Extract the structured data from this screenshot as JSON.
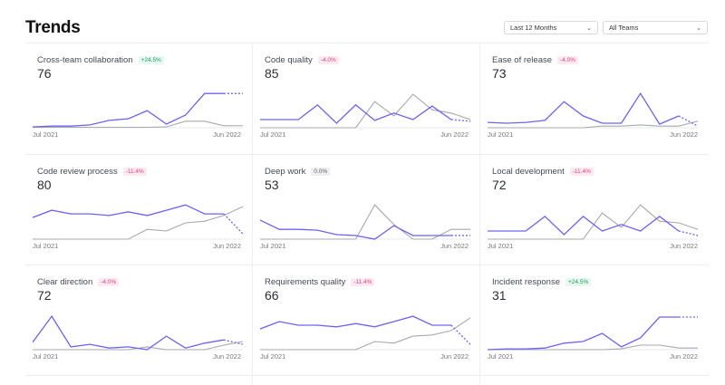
{
  "header": {
    "title": "Trends"
  },
  "filters": {
    "period": "Last 12 Months",
    "team": "All Teams"
  },
  "colors": {
    "primary": "#6c63f0",
    "comparison": "#a6a9b0",
    "positive": "#1f9d5c",
    "negative": "#e2407f"
  },
  "chart_data": [
    {
      "type": "line",
      "title": "Cross-team collaboration",
      "value": "76",
      "change": "+24.5%",
      "trend": "pos",
      "x_start": "Jul 2021",
      "x_end": "Jun 2022",
      "series": [
        {
          "values": [
            2,
            4,
            4,
            7,
            18,
            22,
            42,
            9,
            31,
            84,
            84,
            84
          ]
        },
        {
          "values": [
            1,
            1,
            1,
            1,
            1,
            1,
            1,
            2,
            16,
            16,
            5,
            5
          ]
        }
      ]
    },
    {
      "type": "line",
      "title": "Code quality",
      "value": "85",
      "change": "-4.0%",
      "trend": "neg",
      "x_start": "Jul 2021",
      "x_end": "Jun 2022",
      "series": [
        {
          "values": [
            20,
            20,
            20,
            56,
            11,
            56,
            18,
            36,
            20,
            53,
            20,
            16
          ]
        },
        {
          "values": [
            0,
            0,
            0,
            0,
            0,
            0,
            64,
            29,
            82,
            44,
            36,
            20
          ]
        }
      ]
    },
    {
      "type": "line",
      "title": "Ease of release",
      "value": "73",
      "change": "-4.0%",
      "trend": "neg",
      "x_start": "Jul 2021",
      "x_end": "Jun 2022",
      "series": [
        {
          "values": [
            13,
            11,
            13,
            18,
            64,
            29,
            11,
            11,
            84,
            9,
            29,
            4
          ]
        },
        {
          "values": [
            0,
            0,
            0,
            0,
            0,
            0,
            4,
            4,
            7,
            4,
            4,
            16
          ]
        }
      ]
    },
    {
      "type": "line",
      "title": "Code review process",
      "value": "80",
      "change": "-11.4%",
      "trend": "neg",
      "x_start": "Jul 2021",
      "x_end": "Jun 2022",
      "series": [
        {
          "values": [
            53,
            71,
            62,
            62,
            58,
            67,
            58,
            71,
            84,
            62,
            62,
            13
          ]
        },
        {
          "values": [
            0,
            0,
            0,
            0,
            0,
            0,
            24,
            20,
            40,
            44,
            58,
            80
          ]
        }
      ]
    },
    {
      "type": "line",
      "title": "Deep work",
      "value": "53",
      "change": "0.0%",
      "trend": "neu",
      "x_start": "Jul 2021",
      "x_end": "Jun 2022",
      "series": [
        {
          "values": [
            47,
            24,
            24,
            22,
            11,
            9,
            0,
            33,
            9,
            9,
            9,
            9
          ]
        },
        {
          "values": [
            0,
            0,
            0,
            0,
            0,
            0,
            84,
            36,
            0,
            0,
            24,
            24
          ]
        }
      ]
    },
    {
      "type": "line",
      "title": "Local development",
      "value": "72",
      "change": "-11.4%",
      "trend": "neg",
      "x_start": "Jul 2021",
      "x_end": "Jun 2022",
      "series": [
        {
          "values": [
            20,
            20,
            20,
            56,
            11,
            56,
            20,
            36,
            20,
            56,
            20,
            9
          ]
        },
        {
          "values": [
            0,
            0,
            0,
            0,
            0,
            0,
            64,
            29,
            84,
            44,
            40,
            24
          ]
        }
      ]
    },
    {
      "type": "line",
      "title": "Clear direction",
      "value": "72",
      "change": "-4.0%",
      "trend": "neg",
      "x_start": "Jul 2021",
      "x_end": "Jun 2022",
      "series": [
        {
          "values": [
            18,
            82,
            7,
            13,
            4,
            7,
            0,
            33,
            4,
            16,
            24,
            13
          ]
        },
        {
          "values": [
            0,
            0,
            0,
            0,
            0,
            0,
            7,
            0,
            0,
            0,
            11,
            20
          ]
        }
      ]
    },
    {
      "type": "line",
      "title": "Requirements quality",
      "value": "66",
      "change": "-11.4%",
      "trend": "neg",
      "x_start": "Jul 2021",
      "x_end": "Jun 2022",
      "series": [
        {
          "values": [
            51,
            69,
            60,
            60,
            56,
            64,
            56,
            69,
            82,
            60,
            60,
            13
          ]
        },
        {
          "values": [
            0,
            0,
            0,
            0,
            0,
            0,
            20,
            16,
            33,
            36,
            47,
            78
          ]
        }
      ]
    },
    {
      "type": "line",
      "title": "Incident response",
      "value": "31",
      "change": "+24.5%",
      "trend": "pos",
      "x_start": "Jul 2021",
      "x_end": "Jun 2022",
      "series": [
        {
          "values": [
            0,
            2,
            2,
            4,
            16,
            20,
            40,
            7,
            29,
            80,
            80,
            80
          ]
        },
        {
          "values": [
            0,
            0,
            0,
            0,
            0,
            0,
            0,
            2,
            11,
            11,
            4,
            4
          ]
        }
      ]
    }
  ]
}
